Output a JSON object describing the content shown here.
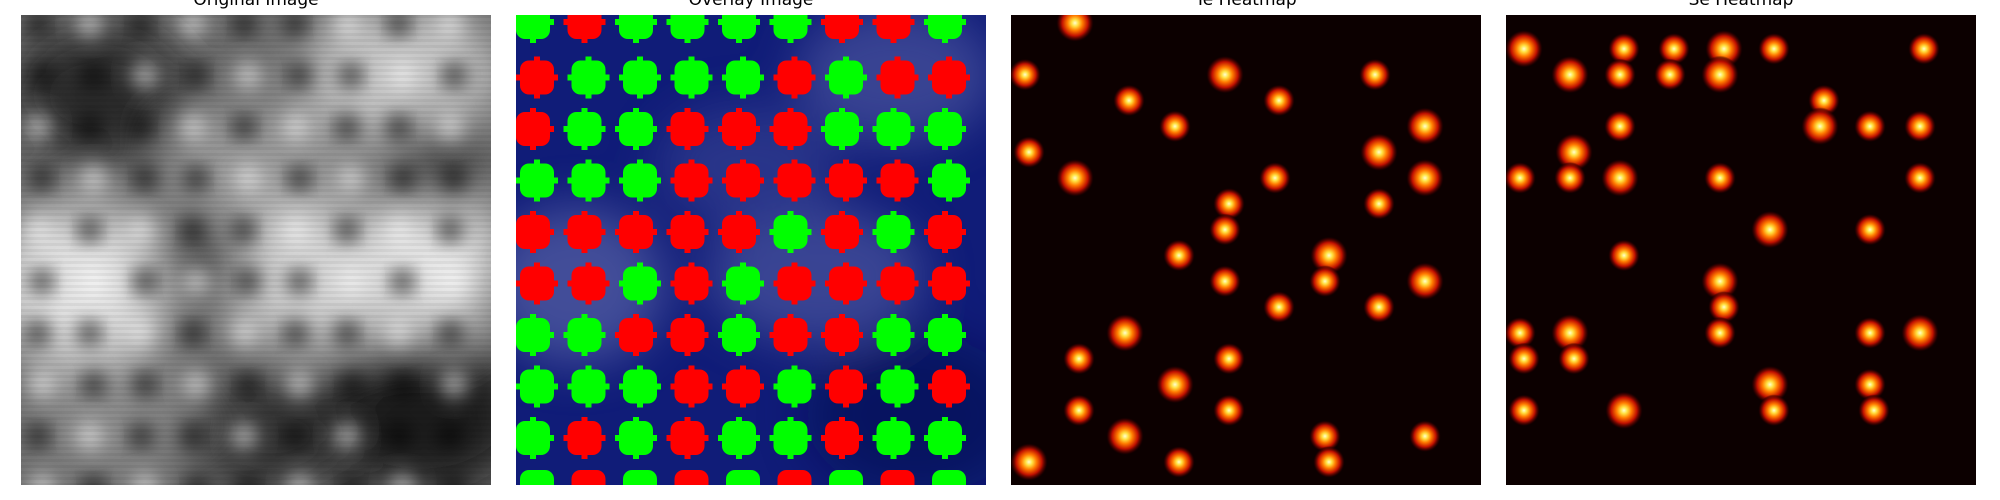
{
  "figure": {
    "panels": [
      {
        "title": "Original Image"
      },
      {
        "title": "Overlay Image"
      },
      {
        "title": "Te Heatmap"
      },
      {
        "title": "Se Heatmap"
      }
    ]
  },
  "colors": {
    "overlay_background": "#101c78",
    "marker_green": "#00ff00",
    "marker_red": "#ff0000",
    "heatmap_background": "#0c0000"
  },
  "overlay_markers": [
    [
      "green",
      "red",
      "green",
      "green",
      "green",
      "green",
      "red",
      "red",
      "green"
    ],
    [
      "red",
      "green",
      "green",
      "green",
      "green",
      "red",
      "green",
      "red",
      "red"
    ],
    [
      "red",
      "green",
      "green",
      "red",
      "red",
      "red",
      "green",
      "green",
      "green"
    ],
    [
      "green",
      "green",
      "green",
      "red",
      "red",
      "red",
      "red",
      "red",
      "green"
    ],
    [
      "red",
      "red",
      "red",
      "red",
      "red",
      "green",
      "red",
      "green",
      "red"
    ],
    [
      "red",
      "red",
      "green",
      "red",
      "green",
      "red",
      "red",
      "red",
      "red"
    ],
    [
      "green",
      "green",
      "red",
      "red",
      "green",
      "red",
      "red",
      "green",
      "green"
    ],
    [
      "green",
      "green",
      "green",
      "red",
      "red",
      "green",
      "red",
      "green",
      "red"
    ],
    [
      "green",
      "red",
      "green",
      "red",
      "green",
      "green",
      "red",
      "green",
      "green"
    ]
  ],
  "te_heatmap_peaks": [
    [
      1,
      0
    ],
    [
      0,
      2
    ],
    [
      2,
      3
    ],
    [
      4,
      2
    ],
    [
      7,
      2
    ],
    [
      5,
      3
    ],
    [
      8,
      4
    ],
    [
      3,
      4
    ],
    [
      5,
      6
    ],
    [
      1,
      6
    ],
    [
      4,
      7
    ],
    [
      7,
      7
    ],
    [
      8,
      6
    ],
    [
      3,
      9
    ],
    [
      4,
      8
    ],
    [
      6,
      9
    ],
    [
      4,
      10
    ],
    [
      6,
      10
    ],
    [
      8,
      10
    ],
    [
      5,
      11
    ],
    [
      7,
      11
    ],
    [
      2,
      12
    ],
    [
      1,
      13
    ],
    [
      4,
      13
    ],
    [
      3,
      14
    ],
    [
      1,
      15
    ],
    [
      4,
      15
    ],
    [
      2,
      16
    ],
    [
      6,
      16
    ],
    [
      8,
      16
    ],
    [
      0,
      17
    ],
    [
      3,
      17
    ],
    [
      6,
      17
    ],
    [
      7,
      5
    ],
    [
      0,
      5
    ]
  ],
  "se_heatmap_peaks": [
    [
      0,
      1
    ],
    [
      2,
      1
    ],
    [
      3,
      1
    ],
    [
      4,
      1
    ],
    [
      5,
      1
    ],
    [
      8,
      1
    ],
    [
      1,
      2
    ],
    [
      2,
      2
    ],
    [
      3,
      2
    ],
    [
      4,
      2
    ],
    [
      6,
      3
    ],
    [
      2,
      4
    ],
    [
      6,
      4
    ],
    [
      7,
      4
    ],
    [
      8,
      4
    ],
    [
      1,
      5
    ],
    [
      0,
      6
    ],
    [
      1,
      6
    ],
    [
      2,
      6
    ],
    [
      4,
      6
    ],
    [
      8,
      6
    ],
    [
      5,
      8
    ],
    [
      7,
      8
    ],
    [
      2,
      9
    ],
    [
      4,
      10
    ],
    [
      4,
      11
    ],
    [
      0,
      12
    ],
    [
      1,
      12
    ],
    [
      4,
      12
    ],
    [
      7,
      12
    ],
    [
      8,
      12
    ],
    [
      0,
      13
    ],
    [
      1,
      13
    ],
    [
      5,
      14
    ],
    [
      7,
      14
    ],
    [
      0,
      15
    ],
    [
      2,
      15
    ],
    [
      5,
      15
    ],
    [
      7,
      15
    ]
  ]
}
